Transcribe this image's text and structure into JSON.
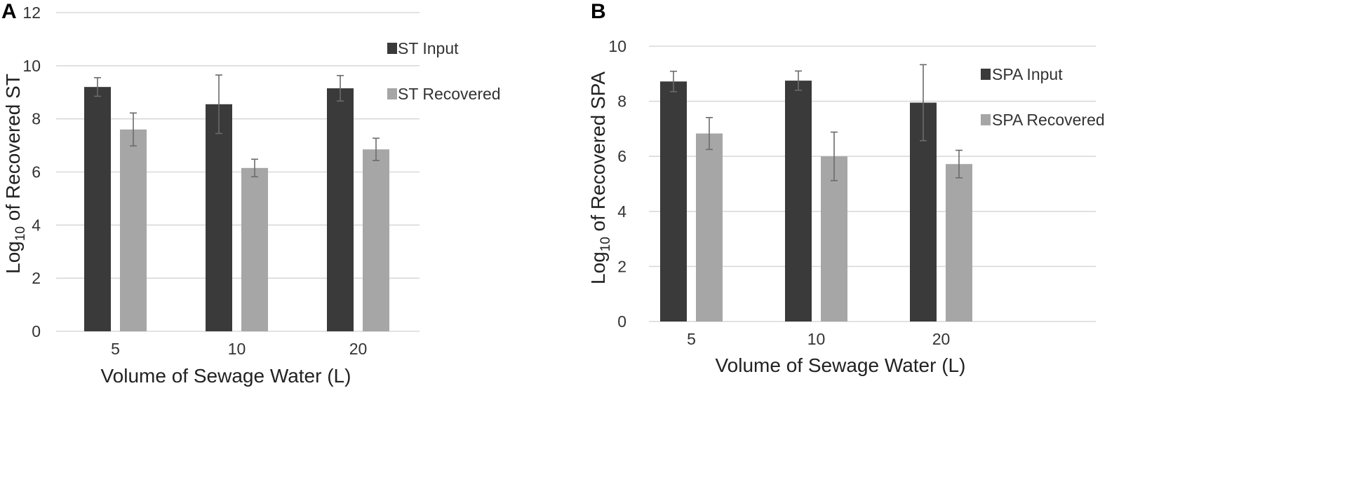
{
  "colors": {
    "input": "#3a3a3a",
    "recovered": "#a6a6a6"
  },
  "chart_data": [
    {
      "panel": "A",
      "type": "bar",
      "title": "",
      "categories": [
        "5",
        "10",
        "20"
      ],
      "series": [
        {
          "name": "ST Input",
          "values": [
            9.2,
            8.55,
            9.15
          ],
          "errors": [
            0.35,
            1.1,
            0.48
          ],
          "color_key": "input"
        },
        {
          "name": "ST Recovered",
          "values": [
            7.6,
            6.15,
            6.85
          ],
          "errors": [
            0.62,
            0.33,
            0.42
          ],
          "color_key": "recovered"
        }
      ],
      "xlabel": "Volume of Sewage Water (L)",
      "ylabel_prefix": "Log",
      "ylabel_sub": "10",
      "ylabel_suffix": " of Recovered ST",
      "ylim": [
        0,
        12
      ],
      "yticks": [
        "0",
        "2",
        "4",
        "6",
        "8",
        "10",
        "12"
      ],
      "grid": true,
      "legend_position": "right"
    },
    {
      "panel": "B",
      "type": "bar",
      "title": "",
      "categories": [
        "5",
        "10",
        "20"
      ],
      "series": [
        {
          "name": "SPA Input",
          "values": [
            8.72,
            8.75,
            7.95
          ],
          "errors": [
            0.37,
            0.35,
            1.38
          ],
          "color_key": "input"
        },
        {
          "name": "SPA Recovered",
          "values": [
            6.83,
            6.0,
            5.72
          ],
          "errors": [
            0.58,
            0.88,
            0.5
          ],
          "color_key": "recovered"
        }
      ],
      "xlabel": "Volume of Sewage Water (L)",
      "ylabel_prefix": "Log",
      "ylabel_sub": "10",
      "ylabel_suffix": " of Recovered  SPA",
      "ylim": [
        0,
        10
      ],
      "yticks": [
        "0",
        "2",
        "4",
        "6",
        "8",
        "10"
      ],
      "grid": true,
      "legend_position": "right"
    }
  ]
}
